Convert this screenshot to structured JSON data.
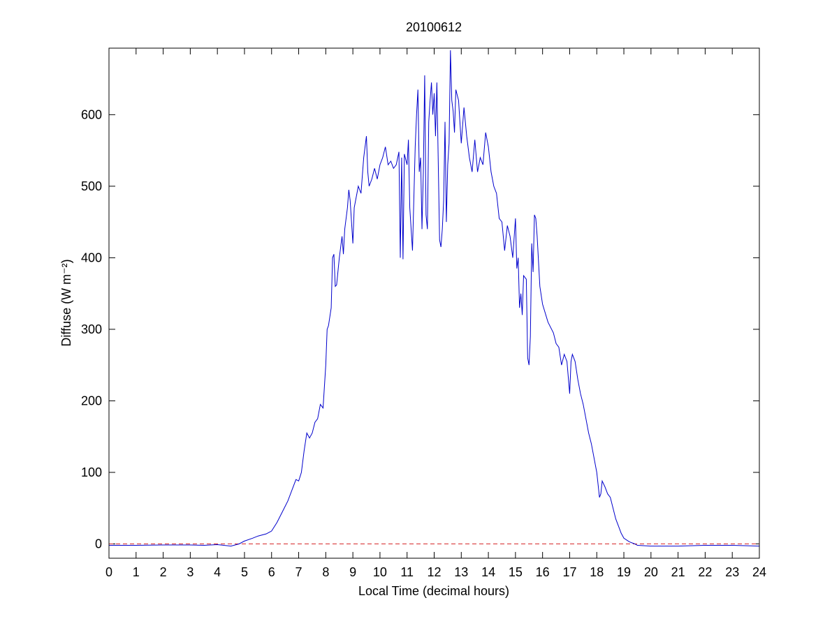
{
  "chart_data": {
    "type": "line",
    "title": "20100612",
    "xlabel": "Local Time (decimal hours)",
    "ylabel": "Diffuse (W m⁻²)",
    "xlim": [
      0,
      24
    ],
    "ylim": [
      -20,
      693
    ],
    "xticks": [
      0,
      1,
      2,
      3,
      4,
      5,
      6,
      7,
      8,
      9,
      10,
      11,
      12,
      13,
      14,
      15,
      16,
      17,
      18,
      19,
      20,
      21,
      22,
      23,
      24
    ],
    "yticks": [
      0,
      100,
      200,
      300,
      400,
      500,
      600
    ],
    "hline": {
      "value": 0,
      "color": "#d62728",
      "style": "dashed"
    },
    "series": [
      {
        "color": "#0000cc",
        "x": [
          0,
          1,
          2,
          3,
          3.5,
          4,
          4.5,
          4.8,
          5,
          5.3,
          5.5,
          5.8,
          6,
          6.2,
          6.4,
          6.6,
          6.8,
          6.9,
          7,
          7.1,
          7.2,
          7.3,
          7.4,
          7.5,
          7.6,
          7.7,
          7.8,
          7.9,
          8,
          8.05,
          8.1,
          8.2,
          8.25,
          8.3,
          8.35,
          8.4,
          8.5,
          8.6,
          8.65,
          8.7,
          8.8,
          8.85,
          8.9,
          9,
          9.05,
          9.1,
          9.2,
          9.3,
          9.4,
          9.5,
          9.55,
          9.6,
          9.7,
          9.8,
          9.9,
          10,
          10.1,
          10.2,
          10.3,
          10.4,
          10.5,
          10.6,
          10.7,
          10.75,
          10.8,
          10.85,
          10.9,
          11,
          11.05,
          11.1,
          11.2,
          11.3,
          11.35,
          11.4,
          11.45,
          11.5,
          11.55,
          11.6,
          11.65,
          11.7,
          11.75,
          11.8,
          11.85,
          11.9,
          11.95,
          12,
          12.05,
          12.1,
          12.2,
          12.25,
          12.3,
          12.35,
          12.4,
          12.45,
          12.5,
          12.55,
          12.6,
          12.65,
          12.7,
          12.75,
          12.8,
          12.9,
          13,
          13.1,
          13.2,
          13.3,
          13.4,
          13.5,
          13.6,
          13.7,
          13.8,
          13.9,
          14,
          14.1,
          14.2,
          14.3,
          14.4,
          14.5,
          14.6,
          14.7,
          14.8,
          14.9,
          15,
          15.05,
          15.1,
          15.15,
          15.2,
          15.25,
          15.3,
          15.4,
          15.45,
          15.5,
          15.55,
          15.6,
          15.65,
          15.7,
          15.75,
          15.8,
          15.9,
          16,
          16.2,
          16.4,
          16.5,
          16.6,
          16.7,
          16.8,
          16.9,
          17,
          17.05,
          17.1,
          17.2,
          17.3,
          17.4,
          17.5,
          17.6,
          17.7,
          17.8,
          17.9,
          18,
          18.1,
          18.15,
          18.2,
          18.3,
          18.4,
          18.5,
          18.6,
          18.7,
          18.8,
          18.9,
          19,
          19.2,
          19.4,
          19.5,
          20,
          21,
          22,
          23,
          24
        ],
        "values": [
          -2,
          -2,
          -1.5,
          -1.5,
          -2,
          -1,
          -3,
          0,
          4,
          8,
          11,
          14,
          18,
          30,
          45,
          60,
          80,
          90,
          88,
          100,
          130,
          155,
          148,
          155,
          170,
          175,
          195,
          190,
          250,
          300,
          305,
          330,
          400,
          405,
          360,
          362,
          400,
          430,
          405,
          440,
          470,
          495,
          480,
          420,
          470,
          480,
          500,
          490,
          540,
          570,
          520,
          500,
          510,
          525,
          510,
          530,
          540,
          555,
          530,
          535,
          525,
          530,
          548,
          400,
          540,
          398,
          545,
          530,
          565,
          470,
          410,
          555,
          600,
          635,
          520,
          540,
          440,
          520,
          655,
          460,
          440,
          590,
          620,
          645,
          600,
          630,
          570,
          645,
          425,
          415,
          440,
          480,
          590,
          450,
          530,
          560,
          690,
          620,
          605,
          575,
          635,
          620,
          560,
          610,
          570,
          540,
          520,
          565,
          520,
          540,
          530,
          575,
          555,
          520,
          500,
          490,
          455,
          450,
          410,
          445,
          430,
          400,
          455,
          385,
          400,
          330,
          350,
          320,
          375,
          370,
          260,
          250,
          290,
          420,
          380,
          460,
          455,
          430,
          360,
          335,
          310,
          295,
          280,
          275,
          250,
          265,
          255,
          210,
          255,
          265,
          255,
          230,
          210,
          195,
          175,
          155,
          140,
          120,
          100,
          65,
          70,
          88,
          80,
          70,
          65,
          50,
          35,
          25,
          15,
          8,
          3,
          0,
          -2,
          -3,
          -3,
          -2,
          -2,
          -3
        ]
      }
    ]
  }
}
